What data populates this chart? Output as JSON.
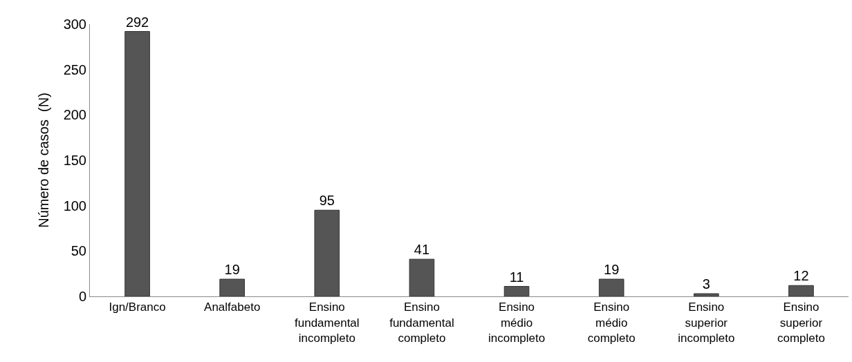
{
  "chart_data": {
    "type": "bar",
    "ylabel": "Número de casos  (N)",
    "categories": [
      "Ign/Branco",
      "Analfabeto",
      "Ensino\nfundamental\nincompleto",
      "Ensino\nfundamental\ncompleto",
      "Ensino\nmédio\nincompleto",
      "Ensino\nmédio\ncompleto",
      "Ensino\nsuperior\nincompleto",
      "Ensino\nsuperior\ncompleto"
    ],
    "values": [
      292,
      19,
      95,
      41,
      11,
      19,
      3,
      12
    ],
    "color": "#555555",
    "ylim": [
      0,
      300
    ],
    "yticks": [
      0,
      50,
      100,
      150,
      200,
      250,
      300
    ],
    "grid": false,
    "data_labels": true
  }
}
